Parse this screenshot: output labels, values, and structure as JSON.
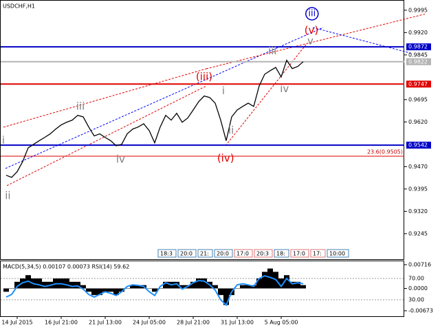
{
  "chart_data": [
    {
      "type": "line",
      "title": "USDCHF,H1",
      "color": "#000000",
      "categories": [
        null,
        null,
        "14 Jul 2015",
        null,
        null,
        null,
        null,
        null,
        null,
        null,
        "16 Jul 21:00",
        null,
        null,
        null,
        null,
        null,
        null,
        null,
        "21 Jul 13:00",
        null,
        null,
        null,
        null,
        null,
        null,
        null,
        "24 Jul 05:00",
        null,
        null,
        null,
        null,
        null,
        null,
        null,
        "28 Jul 21:00",
        null,
        null,
        null,
        null,
        null,
        null,
        null,
        "31 Jul 13:00",
        null,
        null,
        null,
        null,
        null,
        null,
        null,
        "5 Aug 05:00",
        null,
        null,
        null,
        null
      ],
      "values": [
        0.9441,
        0.9434,
        0.9453,
        0.9487,
        0.9533,
        0.9545,
        0.9557,
        0.9568,
        0.958,
        0.9596,
        0.961,
        0.9619,
        0.9626,
        0.9642,
        0.9637,
        0.9603,
        0.9573,
        0.958,
        0.9568,
        0.9557,
        0.954,
        0.9545,
        0.958,
        0.9596,
        0.9603,
        0.9614,
        0.9591,
        0.955,
        0.9603,
        0.9642,
        0.9626,
        0.9649,
        0.9619,
        0.9633,
        0.966,
        0.9688,
        0.9707,
        0.9702,
        0.9683,
        0.9626,
        0.9557,
        0.9637,
        0.966,
        0.9672,
        0.9683,
        0.9672,
        0.9741,
        0.978,
        0.9792,
        0.9803,
        0.9771,
        0.9827,
        0.9799,
        0.9806,
        0.9822
      ],
      "ylim": [
        0.9157,
        1.002
      ],
      "yticks": [
        0.9995,
        {
          "value": 0.992,
          "label": "0.9920"
        },
        0.9845,
        0.9695,
        {
          "value": 0.962,
          "label": "0.9620"
        },
        {
          "value": 0.947,
          "label": "0.9470"
        },
        0.9395,
        {
          "value": 0.932,
          "label": "0.9320"
        },
        0.9245
      ],
      "levels": [
        {
          "value": 0.9872,
          "color": "#0000c8"
        },
        {
          "value": 0.9822,
          "color": "#b4b4b4"
        },
        {
          "value": 0.9747,
          "color": "#e00000"
        },
        {
          "value": 0.9542,
          "color": "#0000c8"
        },
        {
          "value": 0.9505,
          "color": "#e00000",
          "label": "23.6(0.9505)"
        }
      ],
      "annotations": [
        {
          "text": "i",
          "x": -0.5,
          "y": 0.9557,
          "color": "#808080"
        },
        {
          "text": "ii",
          "x": 0.3,
          "y": 0.9372,
          "color": "#808080"
        },
        {
          "text": "iii",
          "x": 13.5,
          "y": 0.9672,
          "color": "#808080"
        },
        {
          "text": "iv",
          "x": 20.8,
          "y": 0.9494,
          "color": "#808080"
        },
        {
          "text": "(iii)",
          "x": 36,
          "y": 0.9771,
          "color": "#e00000"
        },
        {
          "text": "(iv)",
          "x": 39.9,
          "y": 0.9497,
          "color": "#e00000"
        },
        {
          "text": "i",
          "x": 39.5,
          "y": 0.9723,
          "color": "#808080"
        },
        {
          "text": "ii",
          "x": 40.9,
          "y": 0.9591,
          "color": "#808080"
        },
        {
          "text": "iii",
          "x": 48.4,
          "y": 0.9857,
          "color": "#808080"
        },
        {
          "text": "iv",
          "x": 50.6,
          "y": 0.973,
          "color": "#808080"
        },
        {
          "text": "(v)",
          "x": 55.5,
          "y": 0.9926,
          "color": "#e00000"
        },
        {
          "text": "v",
          "x": 55.3,
          "y": 0.9891,
          "color": "#808080"
        },
        {
          "text": "iii",
          "x": 55.6,
          "y": 0.9983,
          "color": "#0000c8",
          "circled": true
        }
      ],
      "time_tags": [
        {
          "text": "18:3",
          "color": "#4682b4"
        },
        {
          "text": "20:0",
          "color": "#4682b4"
        },
        {
          "text": "21:",
          "color": "#4682b4"
        },
        {
          "text": "20:0",
          "color": "#4682b4"
        },
        {
          "text": "17:0",
          "color": "#e07070"
        },
        {
          "text": "20:3",
          "color": "#e07070"
        },
        {
          "text": "18:",
          "color": "#4682b4"
        },
        {
          "text": "17:0",
          "color": "#e07070"
        },
        {
          "text": "17:",
          "color": "#e07070"
        },
        {
          "text": "10:00",
          "color": "#4682b4"
        }
      ]
    },
    {
      "type": "macd",
      "title": "MACD(5,34,5) 0.00107 0.00073 RSI(14) 59.62",
      "series": [
        {
          "color": "#000000",
          "values": [
            -0.001,
            0.0,
            0.002,
            0.003,
            0.004,
            0.003,
            0.003,
            0.002,
            0.002,
            0.003,
            0.003,
            0.003,
            0.002,
            0.002,
            0.001,
            -0.001,
            -0.002,
            -0.002,
            -0.001,
            -0.001,
            -0.002,
            -0.001,
            0.0,
            0.001,
            0.001,
            0.001,
            0.0,
            -0.001,
            0.0,
            0.002,
            0.002,
            0.002,
            0.001,
            0.001,
            0.002,
            0.003,
            0.003,
            0.002,
            0.001,
            -0.002,
            -0.005,
            -0.002,
            0.0,
            0.001,
            0.001,
            0.001,
            0.003,
            0.005,
            0.006,
            0.005,
            0.003,
            0.004,
            0.002,
            0.002,
            0.001
          ]
        },
        {
          "color": "#1e90ff",
          "axis": "y2",
          "values": [
            35,
            40,
            55,
            62,
            65,
            60,
            58,
            55,
            57,
            60,
            60,
            58,
            55,
            56,
            50,
            40,
            35,
            40,
            45,
            42,
            38,
            45,
            55,
            58,
            57,
            55,
            45,
            38,
            55,
            62,
            58,
            60,
            50,
            55,
            62,
            66,
            65,
            58,
            48,
            30,
            20,
            45,
            58,
            60,
            58,
            55,
            70,
            75,
            72,
            68,
            55,
            70,
            60,
            62,
            60
          ]
        }
      ],
      "ylim": [
        -0.00839,
        0.00799
      ],
      "yticks": [
        0.00716,
        {
          "value": 0,
          "label": "0.0000"
        },
        -0.00673
      ],
      "y2lim": [
        -1,
        101
      ],
      "y2ticks": [
        {
          "value": 70,
          "label": "70.00"
        },
        {
          "value": 30,
          "label": "30.00"
        }
      ]
    }
  ]
}
